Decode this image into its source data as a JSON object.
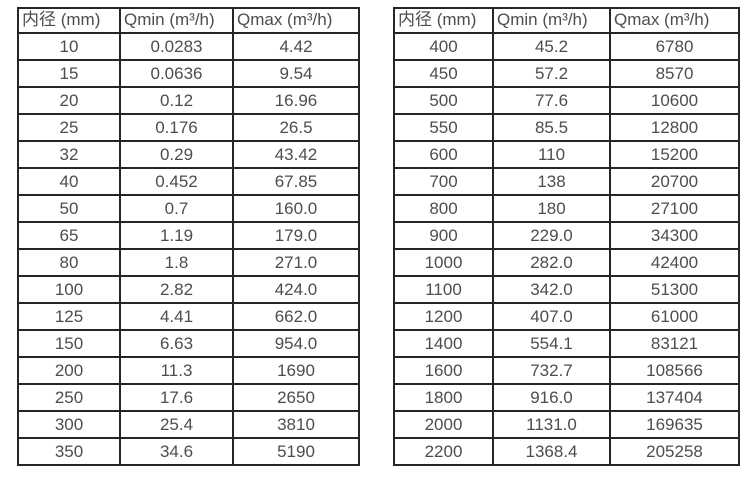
{
  "colors": {
    "background": "#ffffff",
    "grid_border": "#262626",
    "text": "#4d4d4d"
  },
  "chart_data": [
    {
      "type": "table",
      "title": "",
      "columns": [
        "内径 (mm)",
        "Qmin (m³/h)",
        "Qmax (m³/h)"
      ],
      "rows": [
        [
          "10",
          "0.0283",
          "4.42"
        ],
        [
          "15",
          "0.0636",
          "9.54"
        ],
        [
          "20",
          "0.12",
          "16.96"
        ],
        [
          "25",
          "0.176",
          "26.5"
        ],
        [
          "32",
          "0.29",
          "43.42"
        ],
        [
          "40",
          "0.452",
          "67.85"
        ],
        [
          "50",
          "0.7",
          "160.0"
        ],
        [
          "65",
          "1.19",
          "179.0"
        ],
        [
          "80",
          "1.8",
          "271.0"
        ],
        [
          "100",
          "2.82",
          "424.0"
        ],
        [
          "125",
          "4.41",
          "662.0"
        ],
        [
          "150",
          "6.63",
          "954.0"
        ],
        [
          "200",
          "11.3",
          "1690"
        ],
        [
          "250",
          "17.6",
          "2650"
        ],
        [
          "300",
          "25.4",
          "3810"
        ],
        [
          "350",
          "34.6",
          "5190"
        ]
      ]
    },
    {
      "type": "table",
      "title": "",
      "columns": [
        "内径 (mm)",
        "Qmin (m³/h)",
        "Qmax (m³/h)"
      ],
      "rows": [
        [
          "400",
          "45.2",
          "6780"
        ],
        [
          "450",
          "57.2",
          "8570"
        ],
        [
          "500",
          "77.6",
          "10600"
        ],
        [
          "550",
          "85.5",
          "12800"
        ],
        [
          "600",
          "110",
          "15200"
        ],
        [
          "700",
          "138",
          "20700"
        ],
        [
          "800",
          "180",
          "27100"
        ],
        [
          "900",
          "229.0",
          "34300"
        ],
        [
          "1000",
          "282.0",
          "42400"
        ],
        [
          "1100",
          "342.0",
          "51300"
        ],
        [
          "1200",
          "407.0",
          "61000"
        ],
        [
          "1400",
          "554.1",
          "83121"
        ],
        [
          "1600",
          "732.7",
          "108566"
        ],
        [
          "1800",
          "916.0",
          "137404"
        ],
        [
          "2000",
          "1131.0",
          "169635"
        ],
        [
          "2200",
          "1368.4",
          "205258"
        ]
      ]
    }
  ]
}
